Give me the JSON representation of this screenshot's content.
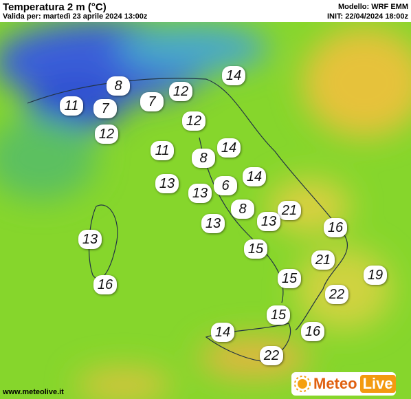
{
  "header": {
    "title": "Temperatura 2 m (°C)",
    "valid": "Valida per: martedì 23 aprile 2024 13:00z",
    "model": "Modello: WRF EMM",
    "init": "INIT: 22/04/2024 18:00z"
  },
  "temperatures": [
    14,
    8,
    12,
    11,
    7,
    7,
    12,
    12,
    11,
    14,
    8,
    14,
    13,
    13,
    6,
    8,
    21,
    13,
    13,
    16,
    13,
    15,
    21,
    19,
    15,
    16,
    22,
    15,
    14,
    16,
    22
  ],
  "footer": {
    "website": "www.meteolive.it",
    "logo_left": "Meteo",
    "logo_right": "Live"
  }
}
